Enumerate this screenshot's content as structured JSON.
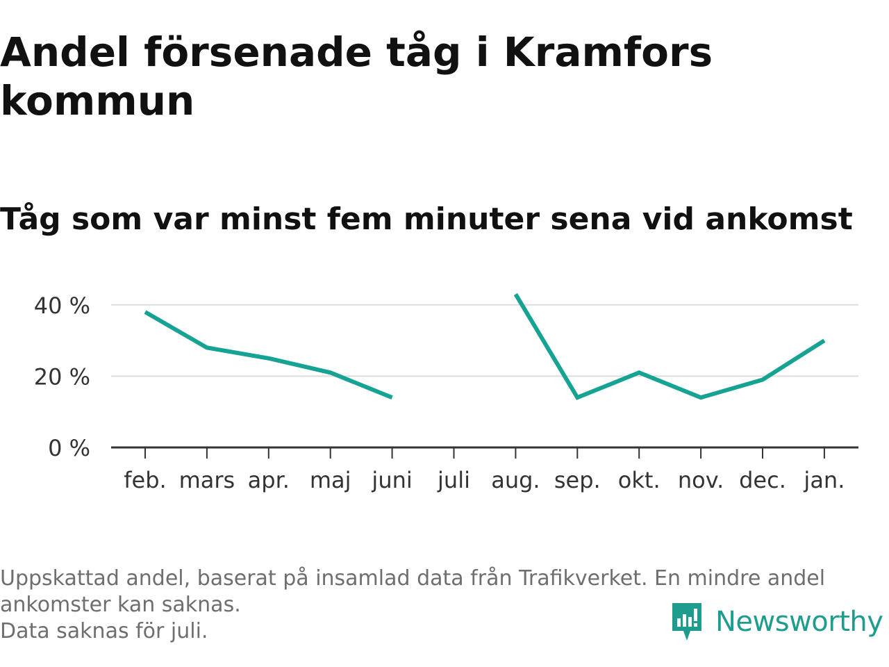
{
  "title": "Andel försenade tåg i Kramfors kommun",
  "subtitle": "Tåg som var minst fem minuter sena vid ankomst",
  "footer": {
    "line1": "Uppskattad andel, baserat på insamlad data från Trafikverket. En mindre andel",
    "line2": "ankomster kan saknas.",
    "line3": "Data saknas för juli."
  },
  "brand": {
    "name": "Newsworthy",
    "icon": "newsworthy-logo-icon",
    "color": "#1e9c8d"
  },
  "colors": {
    "line": "#16a394",
    "grid": "#dddddd",
    "axis": "#333333",
    "tick_label": "#333333"
  },
  "chart_data": {
    "type": "line",
    "categories": [
      "feb.",
      "mars",
      "apr.",
      "maj",
      "juni",
      "juli",
      "aug.",
      "sep.",
      "okt.",
      "nov.",
      "dec.",
      "jan."
    ],
    "series": [
      {
        "values": [
          38,
          28,
          25,
          21,
          14,
          null,
          43,
          14,
          21,
          14,
          19,
          30
        ]
      }
    ],
    "y_ticks": [
      0,
      20,
      40
    ],
    "y_tick_labels": [
      "0 %",
      "20 %",
      "40 %"
    ],
    "ylim": [
      0,
      45
    ],
    "grid": true,
    "legend": "none"
  }
}
